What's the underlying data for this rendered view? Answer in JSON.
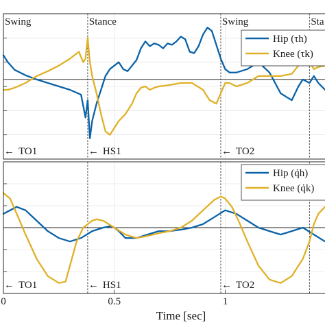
{
  "colors": {
    "hip": "#0a62a8",
    "knee": "#e0b026",
    "axis": "#262626",
    "grid": "#d9d9d9"
  },
  "chart_data": [
    {
      "type": "line",
      "panel": "top",
      "title": "",
      "xlabel": "",
      "ylabel": "",
      "xlim": [
        0,
        1.45
      ],
      "ylim": [
        -1.15,
        0.95
      ],
      "grid": true,
      "zero_line": true,
      "legend_placement": "top-right",
      "series": [
        {
          "name": "Hip (τ_h)",
          "legend_label": "Hip (τh)",
          "color": "#0a62a8",
          "x": [
            0,
            0.02,
            0.05,
            0.1,
            0.15,
            0.2,
            0.25,
            0.3,
            0.35,
            0.37,
            0.38,
            0.39,
            0.4,
            0.42,
            0.44,
            0.46,
            0.48,
            0.5,
            0.52,
            0.54,
            0.56,
            0.58,
            0.6,
            0.62,
            0.64,
            0.66,
            0.68,
            0.7,
            0.72,
            0.74,
            0.76,
            0.78,
            0.8,
            0.82,
            0.84,
            0.86,
            0.88,
            0.9,
            0.92,
            0.94,
            0.96,
            0.98,
            1.0,
            1.02,
            1.05,
            1.1,
            1.15,
            1.2,
            1.25,
            1.3,
            1.33,
            1.35,
            1.38,
            1.4,
            1.42,
            1.45
          ],
          "y": [
            0.35,
            0.25,
            0.14,
            0.06,
            0.0,
            -0.05,
            -0.1,
            -0.15,
            -0.22,
            -0.55,
            -0.3,
            -0.85,
            -0.6,
            -0.35,
            -0.15,
            0.05,
            0.15,
            0.2,
            0.25,
            0.15,
            0.12,
            0.2,
            0.28,
            0.45,
            0.55,
            0.48,
            0.52,
            0.5,
            0.45,
            0.52,
            0.5,
            0.55,
            0.62,
            0.58,
            0.4,
            0.38,
            0.48,
            0.65,
            0.75,
            0.7,
            0.5,
            0.3,
            0.15,
            0.1,
            0.1,
            0.15,
            0.25,
            0.1,
            -0.2,
            -0.3,
            -0.1,
            0.0,
            -0.05,
            0.05,
            -0.05,
            -0.15
          ],
          "note": "estimated"
        },
        {
          "name": "Knee (τ_k)",
          "legend_label": "Knee (τk)",
          "color": "#e0b026",
          "x": [
            0,
            0.02,
            0.05,
            0.1,
            0.15,
            0.2,
            0.25,
            0.3,
            0.34,
            0.36,
            0.37,
            0.38,
            0.39,
            0.4,
            0.42,
            0.44,
            0.46,
            0.48,
            0.5,
            0.52,
            0.55,
            0.58,
            0.6,
            0.62,
            0.64,
            0.66,
            0.68,
            0.7,
            0.75,
            0.8,
            0.85,
            0.9,
            0.93,
            0.96,
            0.98,
            1.0,
            1.02,
            1.05,
            1.1,
            1.15,
            1.2,
            1.25,
            1.3,
            1.33,
            1.35,
            1.38,
            1.4,
            1.42,
            1.45
          ],
          "y": [
            -0.15,
            -0.15,
            -0.12,
            -0.05,
            0.05,
            0.12,
            0.2,
            0.3,
            0.4,
            0.25,
            0.3,
            0.6,
            0.25,
            0.05,
            -0.2,
            -0.5,
            -0.75,
            -0.8,
            -0.7,
            -0.6,
            -0.5,
            -0.35,
            -0.2,
            -0.12,
            -0.1,
            -0.15,
            -0.12,
            -0.1,
            -0.08,
            -0.05,
            -0.05,
            -0.15,
            -0.3,
            -0.35,
            -0.2,
            -0.05,
            -0.05,
            -0.1,
            -0.05,
            0.05,
            0.05,
            0.05,
            0.08,
            0.2,
            0.3,
            0.25,
            0.15,
            0.18,
            0.2
          ],
          "note": "estimated"
        }
      ],
      "event_lines": [
        {
          "x": 0.38,
          "top_label": "Stance",
          "bottom_label": "HS1",
          "bottom_arrow": "←"
        },
        {
          "x": 0.98,
          "top_label": "Swing",
          "bottom_label": "TO2",
          "bottom_arrow": "←"
        },
        {
          "x": 1.38,
          "top_label": "Sta",
          "bottom_label": "",
          "bottom_arrow": ""
        }
      ],
      "left_labels": {
        "top": "Swing",
        "bottom": "TO1",
        "bottom_arrow": "←"
      }
    },
    {
      "type": "line",
      "panel": "bottom",
      "title": "",
      "xlabel": "Time [sec]",
      "ylabel": "",
      "xlim": [
        0,
        1.45
      ],
      "ylim": [
        -0.95,
        0.95
      ],
      "x_ticks": [
        0,
        0.5,
        1
      ],
      "x_tick_labels": [
        "0",
        "0.5",
        "1"
      ],
      "grid": true,
      "zero_line": true,
      "legend_placement": "top-right",
      "series": [
        {
          "name": "Hip (q̇_h)",
          "legend_label": "Hip (q̇h)",
          "color": "#0a62a8",
          "x": [
            0,
            0.03,
            0.06,
            0.1,
            0.15,
            0.2,
            0.25,
            0.3,
            0.35,
            0.4,
            0.45,
            0.48,
            0.5,
            0.52,
            0.55,
            0.6,
            0.65,
            0.7,
            0.75,
            0.8,
            0.85,
            0.9,
            0.95,
            1.0,
            1.05,
            1.1,
            1.15,
            1.2,
            1.25,
            1.3,
            1.35,
            1.4,
            1.45
          ],
          "y": [
            0.2,
            0.25,
            0.3,
            0.25,
            0.1,
            -0.05,
            -0.15,
            -0.2,
            -0.15,
            -0.05,
            0.0,
            0.02,
            0.0,
            -0.05,
            -0.15,
            -0.15,
            -0.1,
            -0.05,
            -0.05,
            -0.03,
            0.0,
            0.05,
            0.15,
            0.25,
            0.2,
            0.1,
            0.0,
            -0.05,
            -0.1,
            -0.05,
            0.0,
            -0.1,
            -0.2
          ],
          "note": "estimated"
        },
        {
          "name": "Knee (q̇_k)",
          "legend_label": "Knee (q̇k)",
          "color": "#e0b026",
          "x": [
            0,
            0.03,
            0.06,
            0.1,
            0.15,
            0.2,
            0.25,
            0.28,
            0.3,
            0.33,
            0.36,
            0.4,
            0.42,
            0.45,
            0.5,
            0.55,
            0.6,
            0.65,
            0.7,
            0.75,
            0.8,
            0.85,
            0.9,
            0.95,
            0.98,
            1.0,
            1.03,
            1.06,
            1.1,
            1.15,
            1.2,
            1.25,
            1.3,
            1.35,
            1.38,
            1.4,
            1.42,
            1.45
          ],
          "y": [
            0.5,
            0.42,
            0.2,
            -0.1,
            -0.45,
            -0.7,
            -0.8,
            -0.78,
            -0.55,
            -0.2,
            0.0,
            0.1,
            0.12,
            0.1,
            0.0,
            -0.1,
            -0.15,
            -0.12,
            -0.08,
            -0.05,
            0.0,
            0.1,
            0.25,
            0.4,
            0.45,
            0.42,
            0.3,
            0.1,
            -0.2,
            -0.55,
            -0.75,
            -0.8,
            -0.7,
            -0.45,
            -0.2,
            0.05,
            0.2,
            0.3
          ],
          "note": "estimated"
        }
      ],
      "event_lines": [
        {
          "x": 0.38,
          "bottom_label": "HS1",
          "bottom_arrow": "←"
        },
        {
          "x": 0.98,
          "bottom_label": "TO2",
          "bottom_arrow": "←"
        },
        {
          "x": 1.38,
          "bottom_label": "",
          "bottom_arrow": ""
        }
      ],
      "left_labels": {
        "bottom": "TO1",
        "bottom_arrow": "←"
      }
    }
  ]
}
